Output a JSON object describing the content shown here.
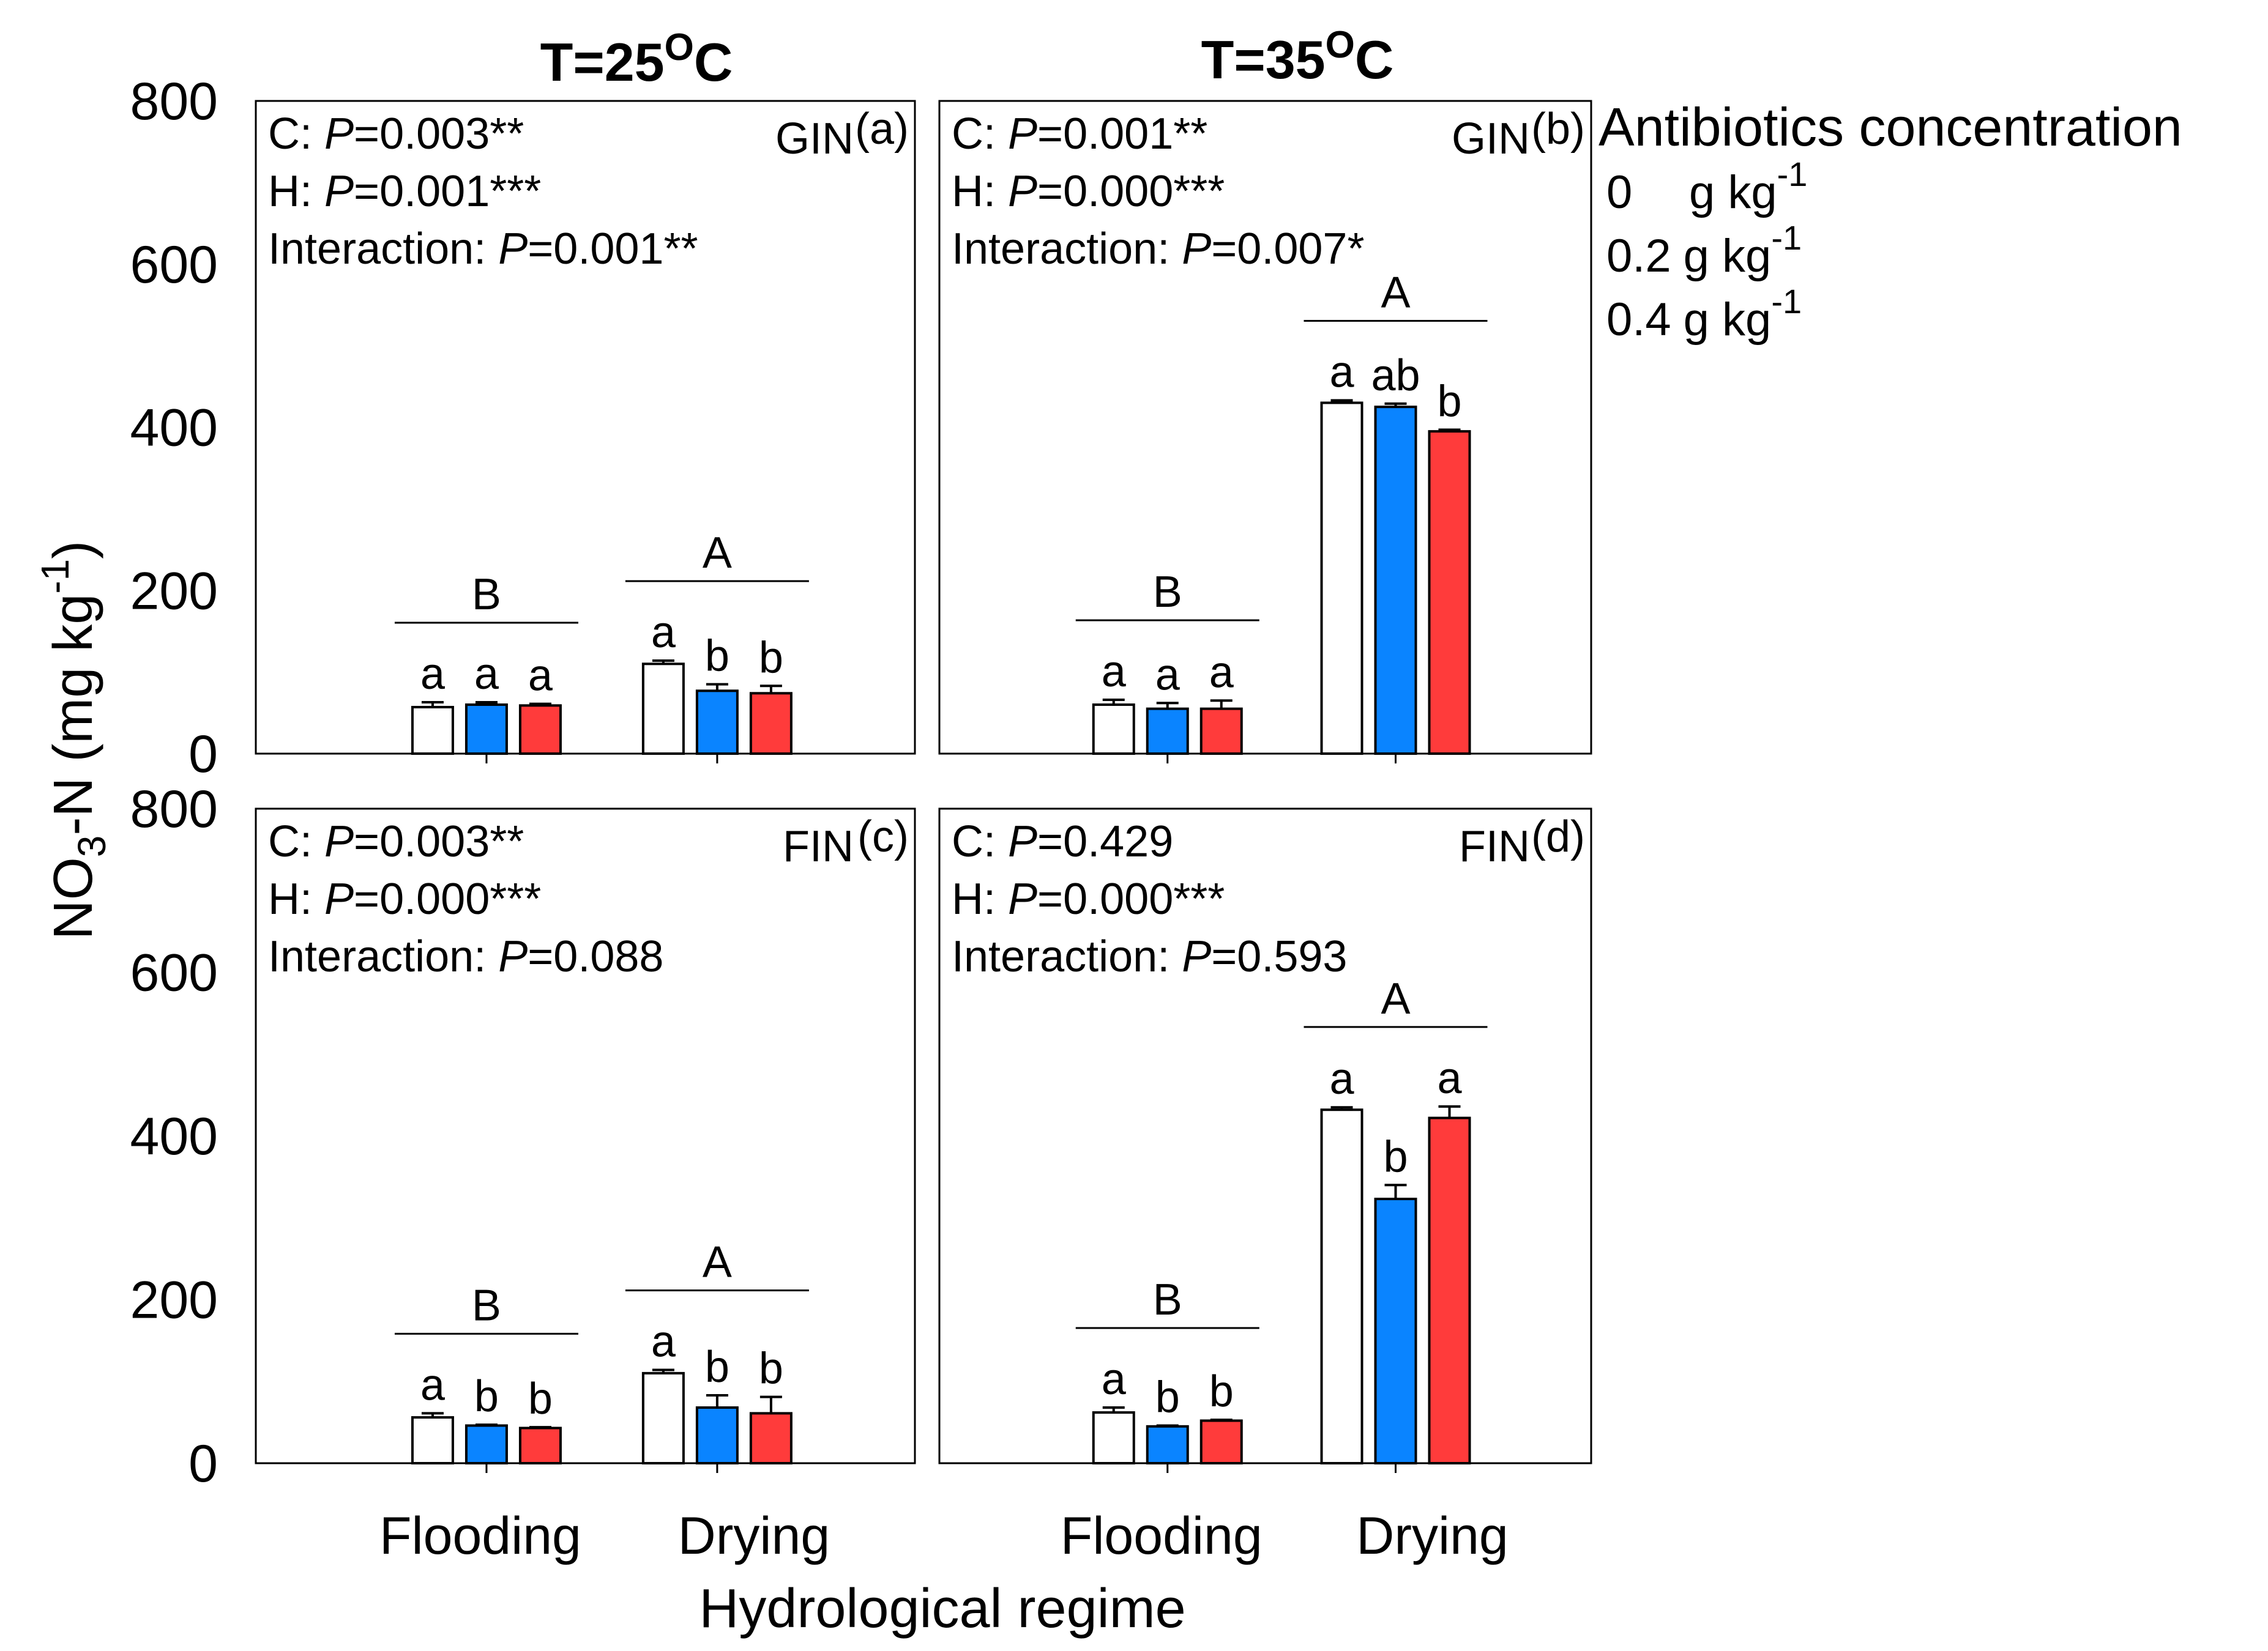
{
  "figure": {
    "y_axis_label": "NO3-N (mg kg-1)",
    "y_axis_label_parts": {
      "main": "NO",
      "sub": "3",
      "mid": "-N (mg kg",
      "sup": "-1",
      "end": ")"
    },
    "x_axis_label": "Hydrological regime",
    "columns": [
      {
        "prefix": "T=25",
        "sup": "O",
        "suffix": "C"
      },
      {
        "prefix": "T=35",
        "sup": "O",
        "suffix": "C"
      }
    ],
    "legend": {
      "title": "Antibiotics concentration",
      "items": [
        {
          "value": "0",
          "unit": "g kg",
          "sup": "-1",
          "color": "#ffffff"
        },
        {
          "value": "0.2",
          "unit": "g kg",
          "sup": "-1",
          "color": "#0a84ff"
        },
        {
          "value": "0.4",
          "unit": "g kg",
          "sup": "-1",
          "color": "#ff3b3b"
        }
      ]
    },
    "colors": {
      "control": "#ffffff",
      "low": "#0a84ff",
      "high": "#ff3b3b"
    }
  },
  "chart_data": [
    {
      "type": "bar",
      "panel": "(a)",
      "label": "GIN",
      "temperature": "T=25OC",
      "categories": [
        "Flooding",
        "Drying"
      ],
      "ylim": [
        0,
        800
      ],
      "yticks": [
        "0",
        "200",
        "400",
        "600",
        "800"
      ],
      "series": [
        {
          "name": "0 g kg-1",
          "values": [
            57,
            110
          ],
          "errors": [
            6,
            4
          ]
        },
        {
          "name": "0.2 g kg-1",
          "values": [
            60,
            77
          ],
          "errors": [
            3,
            8
          ]
        },
        {
          "name": "0.4 g kg-1",
          "values": [
            59,
            74
          ],
          "errors": [
            2,
            9
          ]
        }
      ],
      "letters": [
        [
          "a",
          "a",
          "a"
        ],
        [
          "a",
          "b",
          "b"
        ]
      ],
      "group_letters": [
        "B",
        "A"
      ],
      "stats": [
        {
          "pre": "C: ",
          "p": "P",
          "post": "=0.003**"
        },
        {
          "pre": "H: ",
          "p": "P",
          "post": "=0.001***"
        },
        {
          "pre": "Interaction: ",
          "p": "P",
          "post": "=0.001**"
        }
      ]
    },
    {
      "type": "bar",
      "panel": "(b)",
      "label": "GIN",
      "temperature": "T=35OC",
      "categories": [
        "Flooding",
        "Drying"
      ],
      "ylim": [
        0,
        800
      ],
      "yticks": [
        "0",
        "200",
        "400",
        "600",
        "800"
      ],
      "series": [
        {
          "name": "0 g kg-1",
          "values": [
            60,
            430
          ],
          "errors": [
            6,
            3
          ]
        },
        {
          "name": "0.2 g kg-1",
          "values": [
            55,
            425
          ],
          "errors": [
            7,
            4
          ]
        },
        {
          "name": "0.4 g kg-1",
          "values": [
            55,
            395
          ],
          "errors": [
            10,
            2
          ]
        }
      ],
      "letters": [
        [
          "a",
          "a",
          "a"
        ],
        [
          "a",
          "ab",
          "b"
        ]
      ],
      "group_letters": [
        "B",
        "A"
      ],
      "stats": [
        {
          "pre": "C: ",
          "p": "P",
          "post": "=0.001**"
        },
        {
          "pre": "H: ",
          "p": "P",
          "post": "=0.000***"
        },
        {
          "pre": "Interaction: ",
          "p": "P",
          "post": "=0.007*"
        }
      ]
    },
    {
      "type": "bar",
      "panel": "(c)",
      "label": "FIN",
      "temperature": "T=25OC",
      "categories": [
        "Flooding",
        "Drying"
      ],
      "ylim": [
        0,
        800
      ],
      "yticks": [
        "0",
        "200",
        "400",
        "600",
        "800"
      ],
      "series": [
        {
          "name": "0 g kg-1",
          "values": [
            56,
            110
          ],
          "errors": [
            5,
            4
          ]
        },
        {
          "name": "0.2 g kg-1",
          "values": [
            46,
            68
          ],
          "errors": [
            1,
            15
          ]
        },
        {
          "name": "0.4 g kg-1",
          "values": [
            43,
            61
          ],
          "errors": [
            1,
            20
          ]
        }
      ],
      "letters": [
        [
          "a",
          "b",
          "b"
        ],
        [
          "a",
          "b",
          "b"
        ]
      ],
      "group_letters": [
        "B",
        "A"
      ],
      "stats": [
        {
          "pre": "C: ",
          "p": "P",
          "post": "=0.003**"
        },
        {
          "pre": "H: ",
          "p": "P",
          "post": "=0.000***"
        },
        {
          "pre": "Interaction: ",
          "p": "P",
          "post": "=0.088"
        }
      ]
    },
    {
      "type": "bar",
      "panel": "(d)",
      "label": "FIN",
      "temperature": "T=35OC",
      "categories": [
        "Flooding",
        "Drying"
      ],
      "ylim": [
        0,
        800
      ],
      "yticks": [
        "0",
        "200",
        "400",
        "600",
        "800"
      ],
      "series": [
        {
          "name": "0 g kg-1",
          "values": [
            62,
            432
          ],
          "errors": [
            6,
            3
          ]
        },
        {
          "name": "0.2 g kg-1",
          "values": [
            45,
            323
          ],
          "errors": [
            1,
            17
          ]
        },
        {
          "name": "0.4 g kg-1",
          "values": [
            52,
            422
          ],
          "errors": [
            1,
            14
          ]
        }
      ],
      "letters": [
        [
          "a",
          "b",
          "b"
        ],
        [
          "a",
          "b",
          "a"
        ]
      ],
      "group_letters": [
        "B",
        "A"
      ],
      "stats": [
        {
          "pre": "C: ",
          "p": "P",
          "post": "=0.429"
        },
        {
          "pre": "H: ",
          "p": "P",
          "post": "=0.000***"
        },
        {
          "pre": "Interaction: ",
          "p": "P",
          "post": "=0.593"
        }
      ]
    }
  ]
}
